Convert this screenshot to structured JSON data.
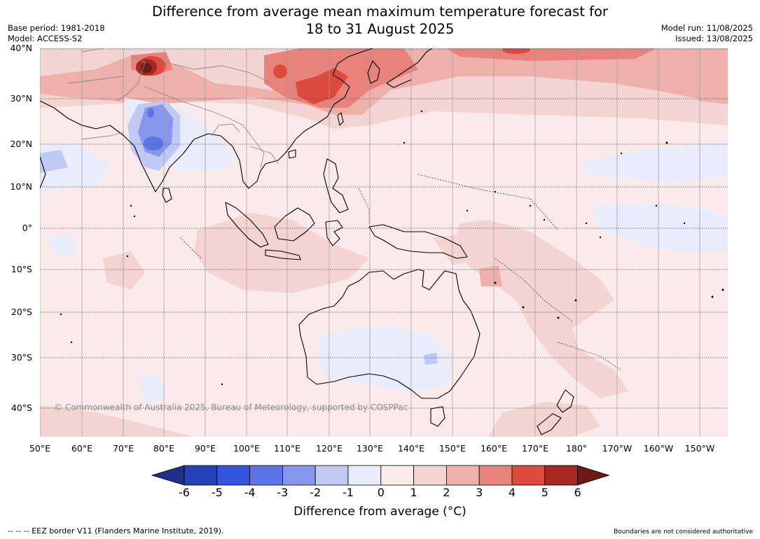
{
  "title_line1": "Difference from average mean maximum temperature forecast for",
  "title_line2": "18 to 31 August 2025",
  "base_period": "Base period: 1981-2018",
  "model": "Model: ACCESS-S2",
  "model_run": "Model run: 11/08/2025",
  "issued": "Issued: 13/08/2025",
  "copyright": "© Commonwealth of Australia 2025, Bureau of Meteorology, supported by COSPPac",
  "lat_labels": [
    "40°N",
    "30°N",
    "20°N",
    "10°N",
    "0°",
    "10°S",
    "20°S",
    "30°S",
    "40°S"
  ],
  "lon_labels": [
    "50°E",
    "60°E",
    "70°E",
    "80°E",
    "90°E",
    "100°E",
    "110°E",
    "120°E",
    "130°E",
    "140°E",
    "150°E",
    "160°E",
    "170°E",
    "180°",
    "170°W",
    "160°W",
    "150°W"
  ],
  "colorbar": {
    "title": "Difference from average (°C)",
    "ticks": [
      "-6",
      "-5",
      "-4",
      "-3",
      "-2",
      "-1",
      "0",
      "1",
      "2",
      "3",
      "4",
      "5",
      "6"
    ],
    "colors": [
      "#1f2f8c",
      "#2640b8",
      "#3355e0",
      "#5c74e6",
      "#8596ec",
      "#c0c8f4",
      "#e8ecfb",
      "#fbeaea",
      "#f4d3d3",
      "#eeb0ab",
      "#e8837b",
      "#dc4a3e",
      "#a82822",
      "#6b1a14"
    ]
  },
  "footer_left": "--  --  -- EEZ border V11 (Flanders Marine Institute, 2019).",
  "footer_right": "Boundaries are not considered authoritative"
}
